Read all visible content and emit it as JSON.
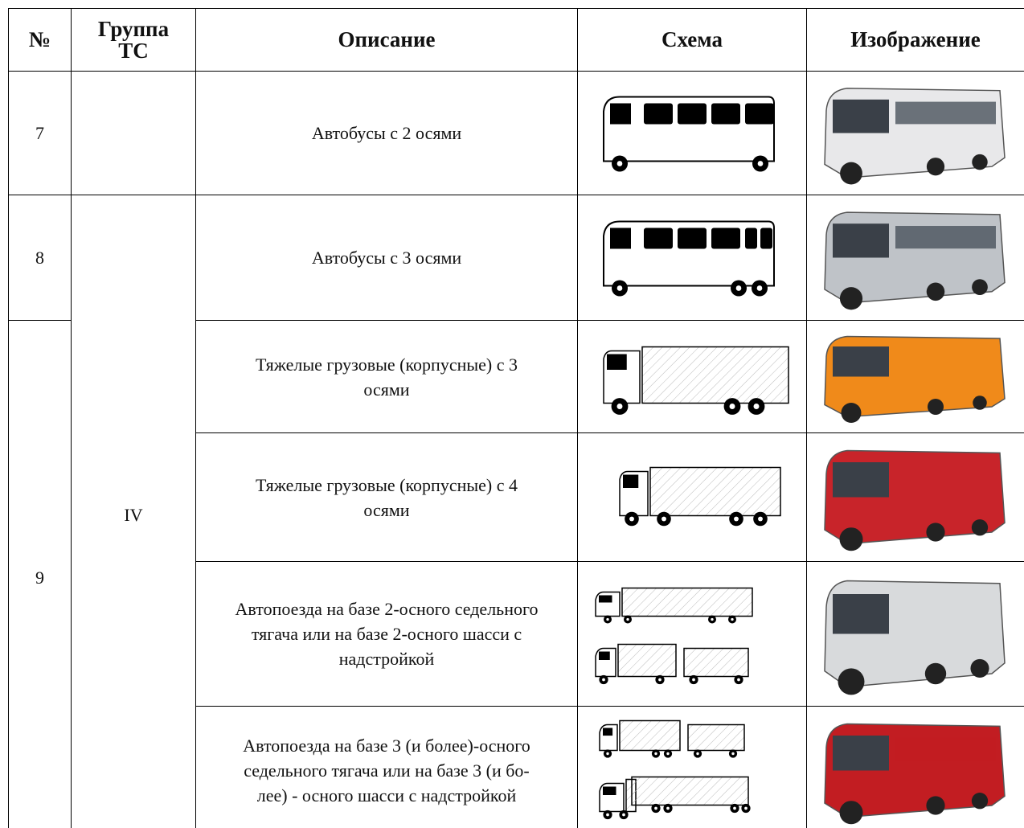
{
  "table": {
    "header": {
      "number": "№",
      "group": [
        "Группа",
        "ТС"
      ],
      "description": "Описание",
      "scheme": "Схема",
      "image": "Изображение"
    },
    "numbers": [
      "7",
      "8",
      "9"
    ],
    "group": "IV",
    "descriptions": [
      [
        "Автобусы с 2 осями"
      ],
      [
        "Автобусы с 3 осями"
      ],
      [
        "Тяжелые грузовые (корпусные) с 3",
        "осями"
      ],
      [
        "Тяжелые грузовые (корпусные) с 4",
        "осями"
      ],
      [
        "Автопоезда на базе 2-осного седельного",
        "тягача или на базе 2-осного шасси с",
        "надстройкой"
      ],
      [
        "Автопоезда на базе 3 (и более)-осного",
        "седельного тягача или на базе 3 (и бо-",
        "лее) - осного шасси с надстройкой"
      ]
    ]
  }
}
